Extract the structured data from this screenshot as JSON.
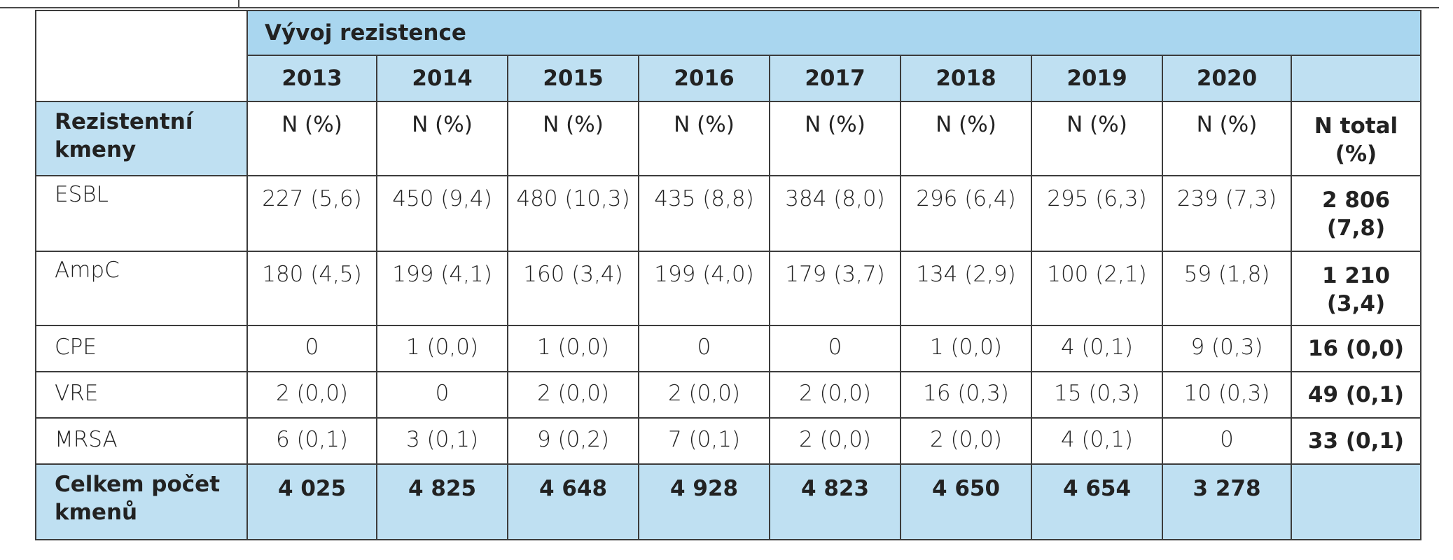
{
  "table": {
    "title": "Vývoj rezistence",
    "years": [
      "2013",
      "2014",
      "2015",
      "2016",
      "2017",
      "2018",
      "2019",
      "2020"
    ],
    "header_row": {
      "label": "Rezistentní kmeny",
      "cells": [
        "N (%)",
        "N (%)",
        "N (%)",
        "N (%)",
        "N (%)",
        "N (%)",
        "N (%)",
        "N (%)"
      ],
      "total_label": "N total (%)"
    },
    "rows": [
      {
        "label": "ESBL",
        "values": [
          "227 (5,6)",
          "450 (9,4)",
          "480 (10,3)",
          "435 (8,8)",
          "384 (8,0)",
          "296 (6,4)",
          "295 (6,3)",
          "239 (7,3)"
        ],
        "total": "2 806 (7,8)"
      },
      {
        "label": "AmpC",
        "values": [
          "180 (4,5)",
          "199 (4,1)",
          "160 (3,4)",
          "199 (4,0)",
          "179 (3,7)",
          "134 (2,9)",
          "100 (2,1)",
          "59 (1,8)"
        ],
        "total": "1 210 (3,4)"
      },
      {
        "label": "CPE",
        "values": [
          "0",
          "1 (0,0)",
          "1 (0,0)",
          "0",
          "0",
          "1 (0,0)",
          "4 (0,1)",
          "9 (0,3)"
        ],
        "total": "16 (0,0)"
      },
      {
        "label": "VRE",
        "values": [
          "2 (0,0)",
          "0",
          "2 (0,0)",
          "2 (0,0)",
          "2 (0,0)",
          "16 (0,3)",
          "15 (0,3)",
          "10 (0,3)"
        ],
        "total": "49 (0,1)"
      },
      {
        "label": "MRSA",
        "values": [
          "6 (0,1)",
          "3 (0,1)",
          "9 (0,2)",
          "7 (0,1)",
          "2 (0,0)",
          "2 (0,0)",
          "4 (0,1)",
          "0"
        ],
        "total": "33 (0,1)"
      }
    ],
    "footer_row": {
      "label": "Celkem počet kmenů",
      "values": [
        "4 025",
        "4 825",
        "4 648",
        "4 928",
        "4 823",
        "4 650",
        "4 654",
        "3 278"
      ],
      "total": ""
    }
  }
}
